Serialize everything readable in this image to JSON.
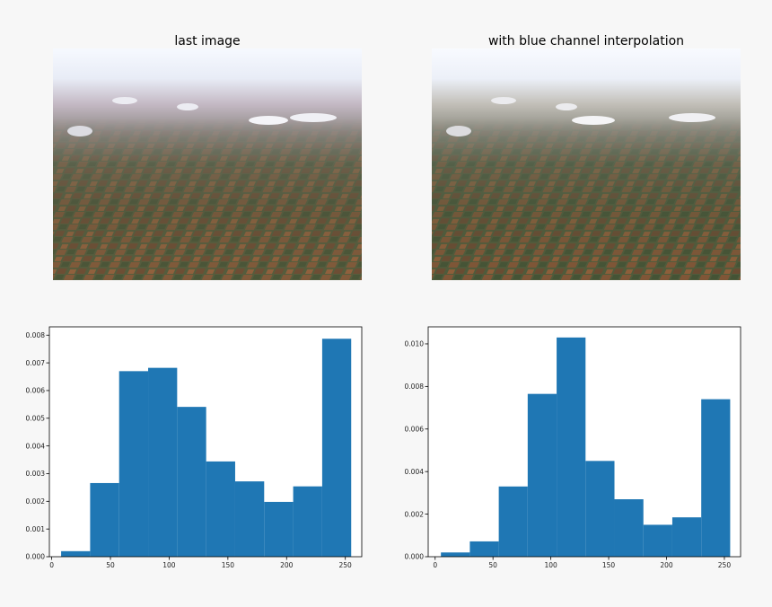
{
  "panels": {
    "left_title": "last image",
    "right_title": "with blue channel interpolation"
  },
  "chart_data": [
    {
      "type": "bar",
      "subtype": "histogram",
      "title": "",
      "xlabel": "",
      "ylabel": "",
      "color": "#1f77b4",
      "xlim": [
        -2,
        264
      ],
      "ylim": [
        0,
        0.0083
      ],
      "bin_edges": [
        8,
        32.7,
        57.4,
        82.1,
        106.8,
        131.5,
        156.2,
        180.9,
        205.6,
        230.3,
        255
      ],
      "values": [
        0.0002,
        0.00266,
        0.0067,
        0.00682,
        0.00541,
        0.00344,
        0.00272,
        0.00198,
        0.00254,
        0.00787
      ],
      "xticks": [
        0,
        50,
        100,
        150,
        200,
        250
      ],
      "xtick_labels": [
        "0",
        "50",
        "100",
        "150",
        "200",
        "250"
      ],
      "yticks": [
        0,
        0.001,
        0.002,
        0.003,
        0.004,
        0.005,
        0.006,
        0.007,
        0.008
      ],
      "ytick_labels": [
        "0.000",
        "0.001",
        "0.002",
        "0.003",
        "0.004",
        "0.005",
        "0.006",
        "0.007",
        "0.008"
      ],
      "grid": false
    },
    {
      "type": "bar",
      "subtype": "histogram",
      "title": "",
      "xlabel": "",
      "ylabel": "",
      "color": "#1f77b4",
      "xlim": [
        -6,
        264
      ],
      "ylim": [
        0,
        0.0108
      ],
      "bin_edges": [
        5,
        30,
        55,
        80,
        105,
        130,
        155,
        180,
        205,
        230,
        255
      ],
      "values": [
        0.0002,
        0.00072,
        0.0033,
        0.00765,
        0.0103,
        0.0045,
        0.0027,
        0.0015,
        0.00185,
        0.0074
      ],
      "xticks": [
        0,
        50,
        100,
        150,
        200,
        250
      ],
      "xtick_labels": [
        "0",
        "50",
        "100",
        "150",
        "200",
        "250"
      ],
      "yticks": [
        0,
        0.002,
        0.004,
        0.006,
        0.008,
        0.01
      ],
      "ytick_labels": [
        "0.000",
        "0.002",
        "0.004",
        "0.006",
        "0.008",
        "0.010"
      ],
      "grid": false
    }
  ]
}
